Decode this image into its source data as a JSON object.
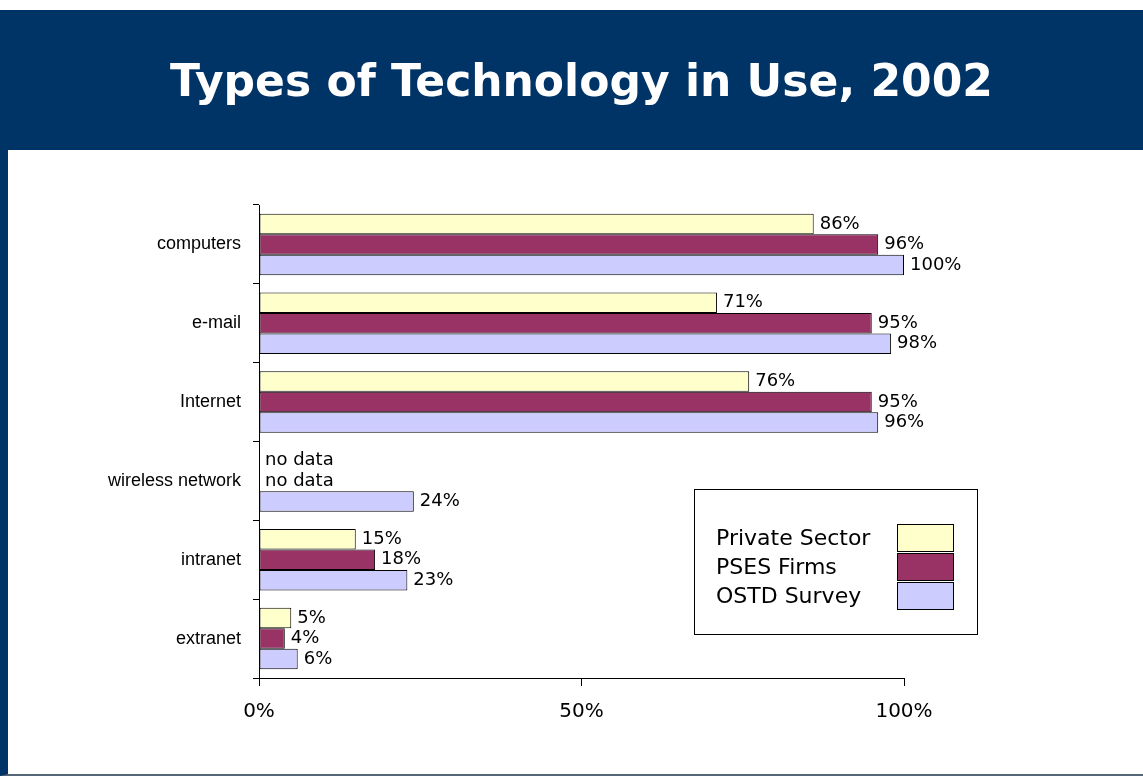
{
  "chart_data": {
    "type": "bar",
    "orientation": "horizontal",
    "title": "Types of Technology in Use, 2002",
    "categories": [
      "computers",
      "e-mail",
      "Internet",
      "wireless network",
      "intranet",
      "extranet"
    ],
    "series": [
      {
        "name": "Private Sector",
        "color": "#ffffcc",
        "values": [
          86,
          71,
          76,
          null,
          15,
          5
        ],
        "value_labels": [
          "86%",
          "71%",
          "76%",
          "no data",
          "15%",
          "5%"
        ]
      },
      {
        "name": "PSES Firms",
        "color": "#993366",
        "values": [
          96,
          95,
          95,
          null,
          18,
          4
        ],
        "value_labels": [
          "96%",
          "95%",
          "95%",
          "no data",
          "18%",
          "4%"
        ]
      },
      {
        "name": "OSTD Survey",
        "color": "#ccccff",
        "values": [
          100,
          98,
          96,
          24,
          23,
          6
        ],
        "value_labels": [
          "100%",
          "98%",
          "96%",
          "24%",
          "23%",
          "6%"
        ]
      }
    ],
    "xlim": [
      0,
      100
    ],
    "xticks": [
      {
        "value": 0,
        "label": "0%"
      },
      {
        "value": 50,
        "label": "50%"
      },
      {
        "value": 100,
        "label": "100%"
      }
    ],
    "legend": "bottom right",
    "grid": false
  }
}
